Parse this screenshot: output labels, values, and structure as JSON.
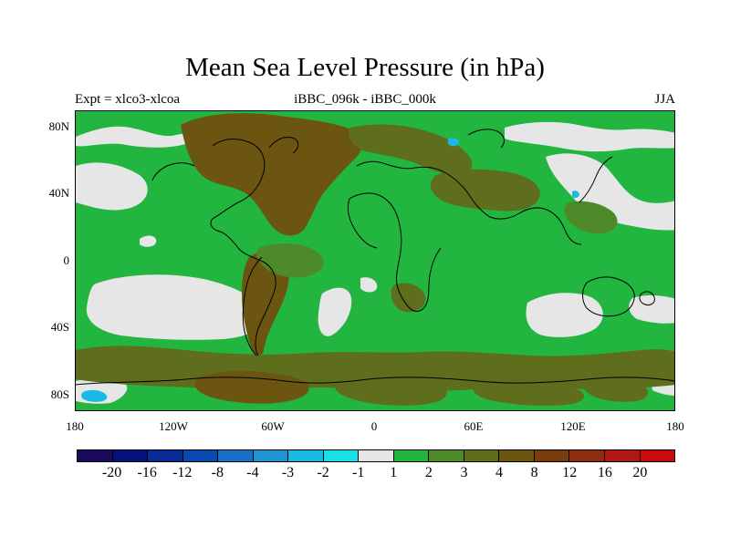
{
  "title": "Mean Sea Level Pressure (in hPa)",
  "left_subtitle": "Expt = xlco3-xlcoa",
  "center_subtitle": "iBBC_096k - iBBC_000k",
  "right_subtitle": "JJA",
  "lat_labels": [
    "80N",
    "40N",
    "0",
    "40S",
    "80S"
  ],
  "lon_labels": [
    "180",
    "120W",
    "60W",
    "0",
    "60E",
    "120E",
    "180"
  ],
  "colorbar": {
    "colors": [
      "#1b0a5b",
      "#06127a",
      "#0a2b96",
      "#0a4ab0",
      "#1a70c6",
      "#1d95d4",
      "#19b9e3",
      "#19dfe6",
      "#e6e6e6",
      "#22b540",
      "#4f8a2a",
      "#5e6e1c",
      "#6b5511",
      "#7a3e0e",
      "#8e2b10",
      "#b01814",
      "#cc0a0a"
    ],
    "labels": [
      "-20",
      "-16",
      "-12",
      "-8",
      "-4",
      "-3",
      "-2",
      "-1",
      "1",
      "2",
      "3",
      "4",
      "8",
      "12",
      "16",
      "20"
    ]
  },
  "palette": {
    "green": "#22b540",
    "olive": "#5e6e1c",
    "darkolive": "#4f8a2a",
    "brown": "#6b5511",
    "grey": "#e6e6e6",
    "cyan": "#19b9e3"
  }
}
